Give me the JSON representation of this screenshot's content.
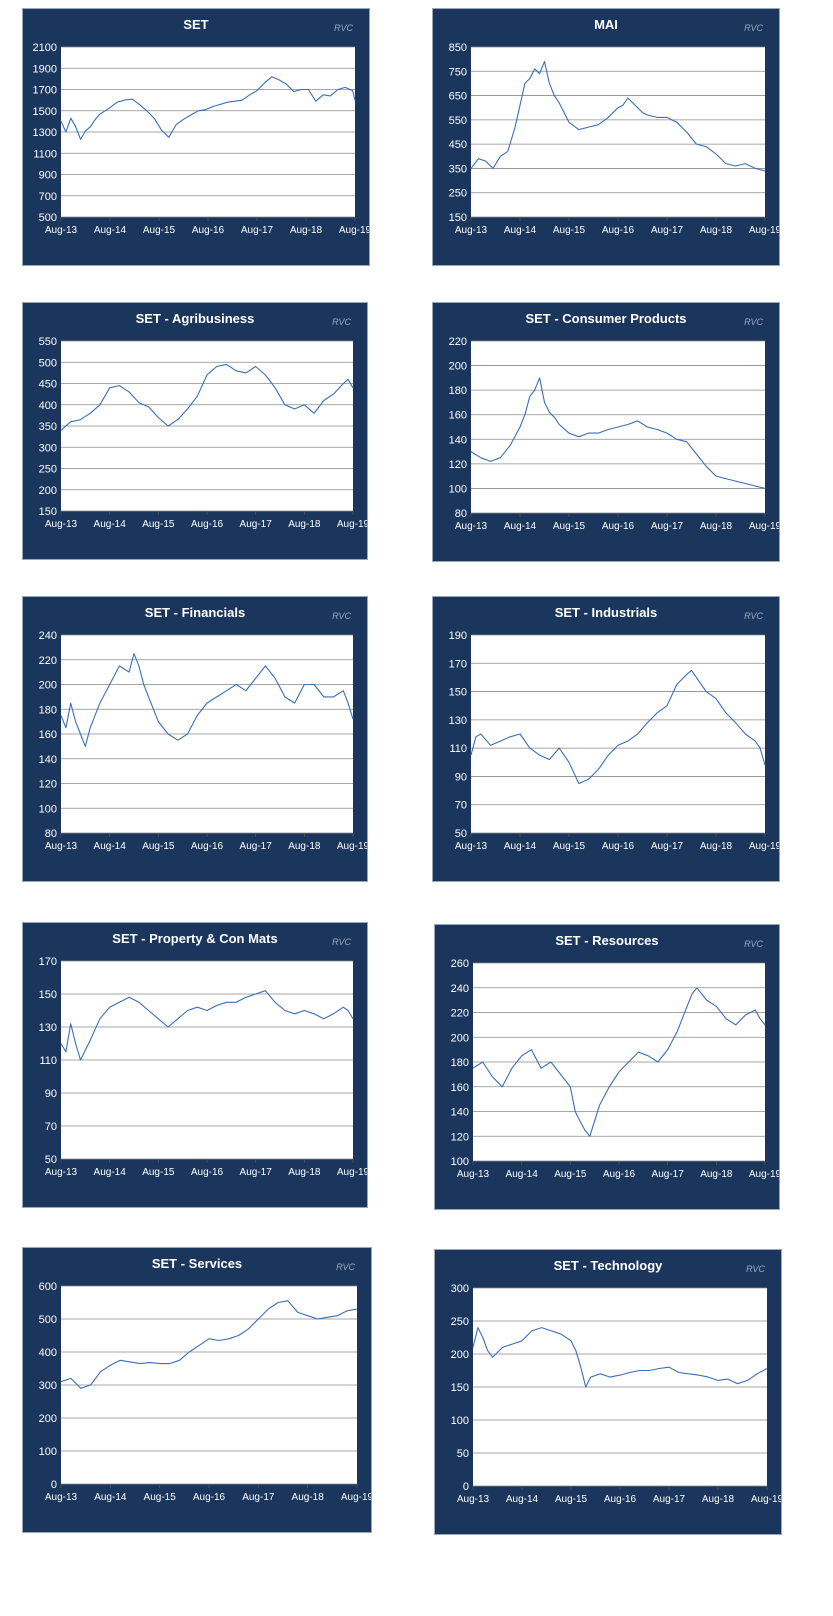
{
  "colors": {
    "panel_bg": "#1b365d",
    "plot_bg": "#ffffff",
    "line": "#3a6fb5",
    "grid": "#8a8a8a",
    "title": "#ffffff",
    "tick_text": "#ffffff",
    "watermark": "#9aa8be"
  },
  "watermark": "RVC",
  "x_tick_labels": [
    "Aug-13",
    "Aug-14",
    "Aug-15",
    "Aug-16",
    "Aug-17",
    "Aug-18",
    "Aug-19"
  ],
  "chart_data": [
    {
      "type": "line",
      "title": "SET",
      "ylim": [
        500,
        2100
      ],
      "yticks": [
        500,
        700,
        900,
        1100,
        1300,
        1500,
        1700,
        1900,
        2100
      ],
      "series": [
        {
          "x": [
            0,
            0.1,
            0.2,
            0.3,
            0.4,
            0.5,
            0.6,
            0.7,
            0.8,
            0.9,
            1.0,
            1.15,
            1.3,
            1.45,
            1.6,
            1.75,
            1.9,
            2.05,
            2.2,
            2.35,
            2.5,
            2.65,
            2.8,
            2.95,
            3.1,
            3.25,
            3.4,
            3.55,
            3.7,
            3.85,
            4.0,
            4.15,
            4.3,
            4.45,
            4.6,
            4.75,
            4.9,
            5.05,
            5.2,
            5.35,
            5.5,
            5.65,
            5.8,
            5.95,
            6.0
          ],
          "y": [
            1400,
            1300,
            1430,
            1350,
            1230,
            1310,
            1350,
            1420,
            1470,
            1500,
            1530,
            1580,
            1600,
            1610,
            1560,
            1500,
            1430,
            1320,
            1250,
            1370,
            1420,
            1460,
            1500,
            1510,
            1540,
            1560,
            1580,
            1590,
            1600,
            1650,
            1690,
            1760,
            1820,
            1790,
            1750,
            1680,
            1700,
            1700,
            1590,
            1650,
            1640,
            1700,
            1720,
            1690,
            1600
          ]
        }
      ]
    },
    {
      "type": "line",
      "title": "MAI",
      "ylim": [
        150,
        850
      ],
      "yticks": [
        150,
        250,
        350,
        450,
        550,
        650,
        750,
        850
      ],
      "series": [
        {
          "x": [
            0,
            0.15,
            0.3,
            0.45,
            0.6,
            0.75,
            0.9,
            1.0,
            1.1,
            1.2,
            1.3,
            1.4,
            1.5,
            1.6,
            1.7,
            1.8,
            1.9,
            2.0,
            2.2,
            2.4,
            2.6,
            2.8,
            3.0,
            3.1,
            3.2,
            3.3,
            3.4,
            3.5,
            3.6,
            3.8,
            4.0,
            4.2,
            4.4,
            4.6,
            4.8,
            5.0,
            5.2,
            5.4,
            5.6,
            5.8,
            6.0
          ],
          "y": [
            350,
            390,
            380,
            350,
            400,
            420,
            520,
            610,
            700,
            720,
            760,
            740,
            790,
            700,
            650,
            620,
            580,
            540,
            510,
            520,
            530,
            560,
            600,
            610,
            640,
            620,
            600,
            580,
            570,
            560,
            560,
            540,
            500,
            450,
            440,
            410,
            370,
            360,
            370,
            350,
            340
          ]
        }
      ]
    },
    {
      "type": "line",
      "title": "SET - Agribusiness",
      "ylim": [
        150,
        550
      ],
      "yticks": [
        150,
        200,
        250,
        300,
        350,
        400,
        450,
        500,
        550
      ],
      "series": [
        {
          "x": [
            0,
            0.2,
            0.4,
            0.6,
            0.8,
            1.0,
            1.2,
            1.4,
            1.6,
            1.8,
            2.0,
            2.2,
            2.4,
            2.6,
            2.8,
            3.0,
            3.2,
            3.4,
            3.6,
            3.8,
            4.0,
            4.2,
            4.4,
            4.6,
            4.8,
            5.0,
            5.2,
            5.4,
            5.6,
            5.8,
            5.9,
            6.0
          ],
          "y": [
            340,
            360,
            365,
            380,
            400,
            440,
            445,
            430,
            405,
            395,
            370,
            350,
            365,
            390,
            420,
            470,
            490,
            495,
            480,
            475,
            490,
            470,
            440,
            400,
            390,
            400,
            380,
            410,
            425,
            450,
            460,
            440
          ]
        }
      ]
    },
    {
      "type": "line",
      "title": "SET - Consumer Products",
      "ylim": [
        80,
        220
      ],
      "yticks": [
        80,
        100,
        120,
        140,
        160,
        180,
        200,
        220
      ],
      "series": [
        {
          "x": [
            0,
            0.2,
            0.4,
            0.6,
            0.8,
            1.0,
            1.1,
            1.2,
            1.3,
            1.4,
            1.5,
            1.6,
            1.7,
            1.8,
            2.0,
            2.2,
            2.4,
            2.6,
            2.8,
            3.0,
            3.2,
            3.4,
            3.6,
            3.8,
            4.0,
            4.2,
            4.4,
            4.6,
            4.8,
            5.0,
            5.2,
            5.4,
            5.6,
            5.8,
            6.0
          ],
          "y": [
            130,
            125,
            122,
            125,
            135,
            150,
            160,
            175,
            180,
            190,
            170,
            162,
            158,
            152,
            145,
            142,
            145,
            145,
            148,
            150,
            152,
            155,
            150,
            148,
            145,
            140,
            138,
            128,
            118,
            110,
            108,
            106,
            104,
            102,
            100
          ]
        }
      ]
    },
    {
      "type": "line",
      "title": "SET - Financials",
      "ylim": [
        80,
        240
      ],
      "yticks": [
        80,
        100,
        120,
        140,
        160,
        180,
        200,
        220,
        240
      ],
      "series": [
        {
          "x": [
            0,
            0.1,
            0.2,
            0.3,
            0.4,
            0.5,
            0.6,
            0.8,
            1.0,
            1.2,
            1.4,
            1.5,
            1.6,
            1.7,
            1.8,
            2.0,
            2.2,
            2.4,
            2.6,
            2.8,
            3.0,
            3.2,
            3.4,
            3.6,
            3.8,
            4.0,
            4.2,
            4.4,
            4.6,
            4.8,
            5.0,
            5.2,
            5.4,
            5.6,
            5.8,
            5.9,
            6.0
          ],
          "y": [
            175,
            165,
            185,
            170,
            160,
            150,
            165,
            185,
            200,
            215,
            210,
            225,
            215,
            200,
            190,
            170,
            160,
            155,
            160,
            175,
            185,
            190,
            195,
            200,
            195,
            205,
            215,
            205,
            190,
            185,
            200,
            200,
            190,
            190,
            195,
            185,
            172
          ]
        }
      ]
    },
    {
      "type": "line",
      "title": "SET - Industrials",
      "ylim": [
        50,
        190
      ],
      "yticks": [
        50,
        70,
        90,
        110,
        130,
        150,
        170,
        190
      ],
      "series": [
        {
          "x": [
            0,
            0.1,
            0.2,
            0.4,
            0.6,
            0.8,
            1.0,
            1.2,
            1.4,
            1.6,
            1.8,
            2.0,
            2.2,
            2.4,
            2.6,
            2.8,
            3.0,
            3.2,
            3.4,
            3.6,
            3.8,
            4.0,
            4.2,
            4.4,
            4.5,
            4.6,
            4.8,
            5.0,
            5.2,
            5.4,
            5.6,
            5.8,
            5.9,
            6.0
          ],
          "y": [
            105,
            118,
            120,
            112,
            115,
            118,
            120,
            110,
            105,
            102,
            110,
            100,
            85,
            88,
            95,
            105,
            112,
            115,
            120,
            128,
            135,
            140,
            155,
            162,
            165,
            160,
            150,
            145,
            135,
            128,
            120,
            115,
            110,
            98
          ]
        }
      ]
    },
    {
      "type": "line",
      "title": "SET - Property & Con Mats",
      "ylim": [
        50,
        170
      ],
      "yticks": [
        50,
        70,
        90,
        110,
        130,
        150,
        170
      ],
      "series": [
        {
          "x": [
            0,
            0.1,
            0.2,
            0.3,
            0.4,
            0.6,
            0.8,
            1.0,
            1.2,
            1.4,
            1.6,
            1.8,
            2.0,
            2.2,
            2.4,
            2.6,
            2.8,
            3.0,
            3.2,
            3.4,
            3.6,
            3.8,
            4.0,
            4.2,
            4.4,
            4.6,
            4.8,
            5.0,
            5.2,
            5.4,
            5.6,
            5.8,
            5.9,
            6.0
          ],
          "y": [
            120,
            115,
            132,
            120,
            110,
            122,
            135,
            142,
            145,
            148,
            145,
            140,
            135,
            130,
            135,
            140,
            142,
            140,
            143,
            145,
            145,
            148,
            150,
            152,
            145,
            140,
            138,
            140,
            138,
            135,
            138,
            142,
            140,
            135
          ]
        }
      ]
    },
    {
      "type": "line",
      "title": "SET - Resources",
      "ylim": [
        100,
        260
      ],
      "yticks": [
        100,
        120,
        140,
        160,
        180,
        200,
        220,
        240,
        260
      ],
      "series": [
        {
          "x": [
            0,
            0.2,
            0.4,
            0.6,
            0.8,
            1.0,
            1.2,
            1.4,
            1.6,
            1.8,
            2.0,
            2.1,
            2.2,
            2.3,
            2.4,
            2.6,
            2.8,
            3.0,
            3.2,
            3.4,
            3.6,
            3.8,
            4.0,
            4.2,
            4.4,
            4.5,
            4.6,
            4.8,
            5.0,
            5.2,
            5.4,
            5.6,
            5.8,
            5.9,
            6.0
          ],
          "y": [
            175,
            180,
            168,
            160,
            175,
            185,
            190,
            175,
            180,
            170,
            160,
            140,
            132,
            125,
            120,
            145,
            160,
            172,
            180,
            188,
            185,
            180,
            190,
            205,
            225,
            235,
            240,
            230,
            225,
            215,
            210,
            218,
            222,
            215,
            210
          ]
        }
      ]
    },
    {
      "type": "line",
      "title": "SET - Services",
      "ylim": [
        0,
        600
      ],
      "yticks": [
        0,
        100,
        200,
        300,
        400,
        500,
        600
      ],
      "series": [
        {
          "x": [
            0,
            0.2,
            0.4,
            0.6,
            0.8,
            1.0,
            1.2,
            1.4,
            1.6,
            1.8,
            2.0,
            2.2,
            2.4,
            2.6,
            2.8,
            3.0,
            3.2,
            3.4,
            3.6,
            3.8,
            4.0,
            4.2,
            4.4,
            4.6,
            4.8,
            5.0,
            5.2,
            5.4,
            5.6,
            5.8,
            6.0
          ],
          "y": [
            310,
            320,
            290,
            300,
            340,
            360,
            375,
            370,
            365,
            368,
            365,
            365,
            375,
            400,
            420,
            440,
            435,
            440,
            450,
            470,
            500,
            530,
            550,
            555,
            520,
            510,
            500,
            505,
            510,
            525,
            530
          ]
        }
      ]
    },
    {
      "type": "line",
      "title": "SET - Technology",
      "ylim": [
        0,
        300
      ],
      "yticks": [
        0,
        50,
        100,
        150,
        200,
        250,
        300
      ],
      "series": [
        {
          "x": [
            0,
            0.1,
            0.2,
            0.3,
            0.4,
            0.6,
            0.8,
            1.0,
            1.2,
            1.4,
            1.6,
            1.8,
            2.0,
            2.1,
            2.2,
            2.3,
            2.4,
            2.6,
            2.8,
            3.0,
            3.2,
            3.4,
            3.6,
            3.8,
            4.0,
            4.2,
            4.4,
            4.6,
            4.8,
            5.0,
            5.2,
            5.4,
            5.6,
            5.8,
            6.0
          ],
          "y": [
            210,
            240,
            225,
            205,
            195,
            210,
            215,
            220,
            235,
            240,
            235,
            230,
            220,
            205,
            180,
            150,
            165,
            170,
            165,
            168,
            172,
            175,
            175,
            178,
            180,
            172,
            170,
            168,
            165,
            160,
            162,
            155,
            160,
            170,
            178
          ]
        }
      ]
    }
  ]
}
